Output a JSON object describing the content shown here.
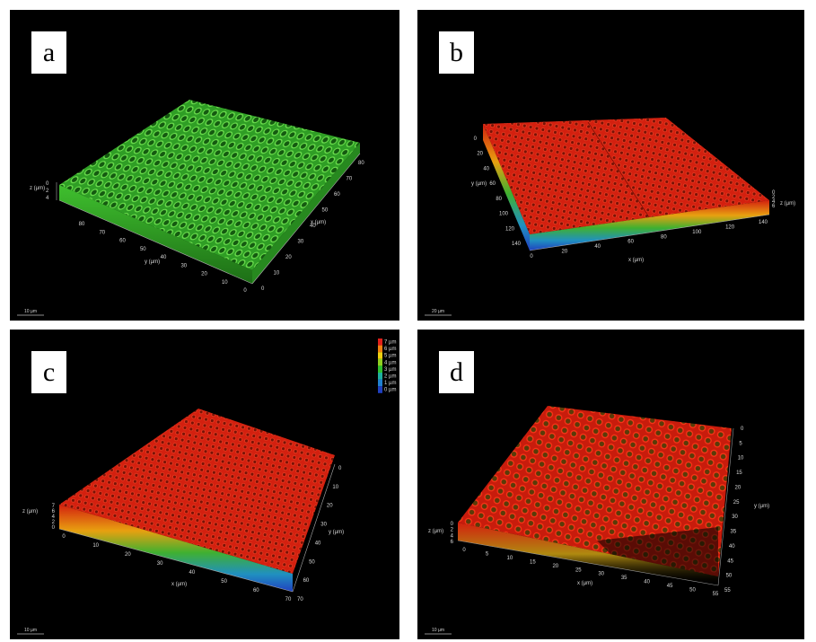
{
  "panels": {
    "a": {
      "label": "a",
      "color": "#35b82a",
      "z_axis_label": "z (µm)",
      "z_ticks": [
        "0",
        "2",
        "4"
      ],
      "x_axis_label": "x (µm)",
      "x_ticks": [
        "0",
        "10",
        "20",
        "30",
        "40",
        "50",
        "60",
        "70",
        "80"
      ],
      "y_axis_label": "y (µm)",
      "y_ticks": [
        "80",
        "70",
        "60",
        "50",
        "40",
        "30",
        "20",
        "10",
        "0"
      ],
      "scalebar": "10 µm"
    },
    "b": {
      "label": "b",
      "color": "#d3200f",
      "z_axis_label": "z (µm)",
      "z_ticks": [
        "0",
        "2",
        "4",
        "6"
      ],
      "x_axis_label": "x (µm)",
      "x_ticks": [
        "0",
        "20",
        "40",
        "60",
        "80",
        "100",
        "120",
        "140"
      ],
      "y_axis_label": "y (µm)",
      "y_ticks": [
        "0",
        "20",
        "40",
        "60",
        "80",
        "100",
        "120",
        "140"
      ],
      "scalebar": "20 µm"
    },
    "c": {
      "label": "c",
      "color": "#d3200f",
      "z_axis_label": "z (µm)",
      "z_ticks": [
        "7",
        "6",
        "4",
        "2",
        "0"
      ],
      "x_axis_label": "x (µm)",
      "x_ticks": [
        "0",
        "10",
        "20",
        "30",
        "40",
        "50",
        "60",
        "70"
      ],
      "y_axis_label": "y (µm)",
      "y_ticks": [
        "0",
        "10",
        "20",
        "30",
        "40",
        "50",
        "60",
        "70"
      ],
      "legend": [
        "7 µm",
        "6 µm",
        "5 µm",
        "4 µm",
        "3 µm",
        "2 µm",
        "1 µm",
        "0 µm"
      ],
      "legend_colors": [
        "#e0201a",
        "#f08010",
        "#f0d010",
        "#90d020",
        "#30c030",
        "#20b0a0",
        "#2080d0",
        "#2040c0"
      ],
      "scalebar": "10 µm"
    },
    "d": {
      "label": "d",
      "color": "#d3200f",
      "z_axis_label": "z (µm)",
      "z_ticks": [
        "0",
        "2",
        "4",
        "6"
      ],
      "x_axis_label": "x (µm)",
      "x_ticks": [
        "0",
        "5",
        "10",
        "15",
        "20",
        "25",
        "30",
        "35",
        "40",
        "45",
        "50",
        "55"
      ],
      "y_axis_label": "y (µm)",
      "y_ticks": [
        "0",
        "5",
        "10",
        "15",
        "20",
        "25",
        "30",
        "35",
        "40",
        "45",
        "50",
        "55"
      ],
      "scalebar": "10 µm"
    }
  }
}
